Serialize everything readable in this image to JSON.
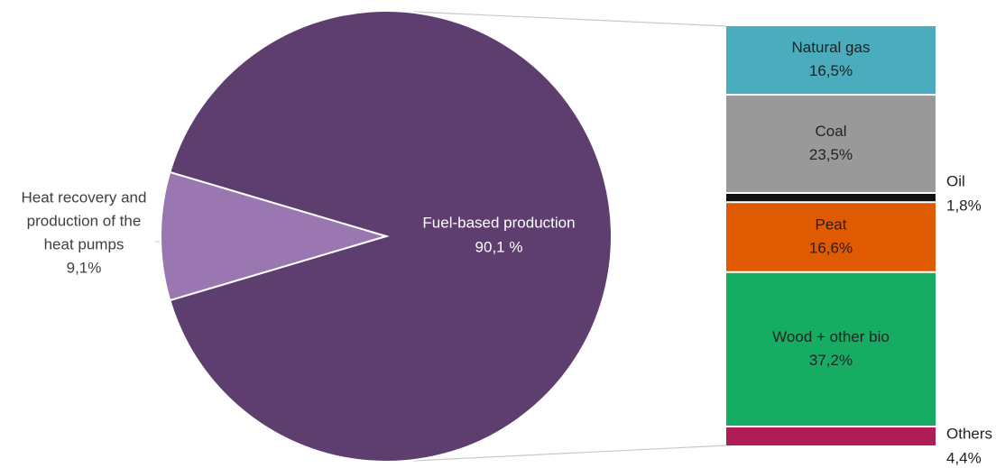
{
  "chart_data": [
    {
      "type": "pie",
      "slices": [
        {
          "label": "Fuel-based production",
          "value_label": "90,1 %",
          "value": 90.1,
          "color": "#5e3d6f",
          "label_color": "#ffffff"
        },
        {
          "label": "Heat recovery and production of the heat pumps",
          "label_lines": [
            "Heat recovery and",
            "production of the",
            "heat pumps"
          ],
          "value_label": "9,1%",
          "value": 9.1,
          "color": "#9b77b1",
          "label_color": "#404040"
        }
      ]
    },
    {
      "type": "bar",
      "stacked": true,
      "breakdown_of": "Fuel-based production",
      "segments": [
        {
          "label": "Natural gas",
          "value_label": "16,5%",
          "value": 16.5,
          "color": "#4aacbd",
          "label_inside": true
        },
        {
          "label": "Coal",
          "value_label": "23,5%",
          "value": 23.5,
          "color": "#999999",
          "label_inside": true
        },
        {
          "label": "Oil",
          "value_label": "1,8%",
          "value": 1.8,
          "color": "#111111",
          "label_inside": false
        },
        {
          "label": "Peat",
          "value_label": "16,6%",
          "value": 16.6,
          "color": "#df5a00",
          "label_inside": true
        },
        {
          "label": "Wood + other bio",
          "value_label": "37,2%",
          "value": 37.2,
          "color": "#16ad62",
          "label_inside": true
        },
        {
          "label": "Others",
          "value_label": "4,4%",
          "value": 4.4,
          "color": "#b01c55",
          "label_inside": false
        }
      ]
    }
  ]
}
